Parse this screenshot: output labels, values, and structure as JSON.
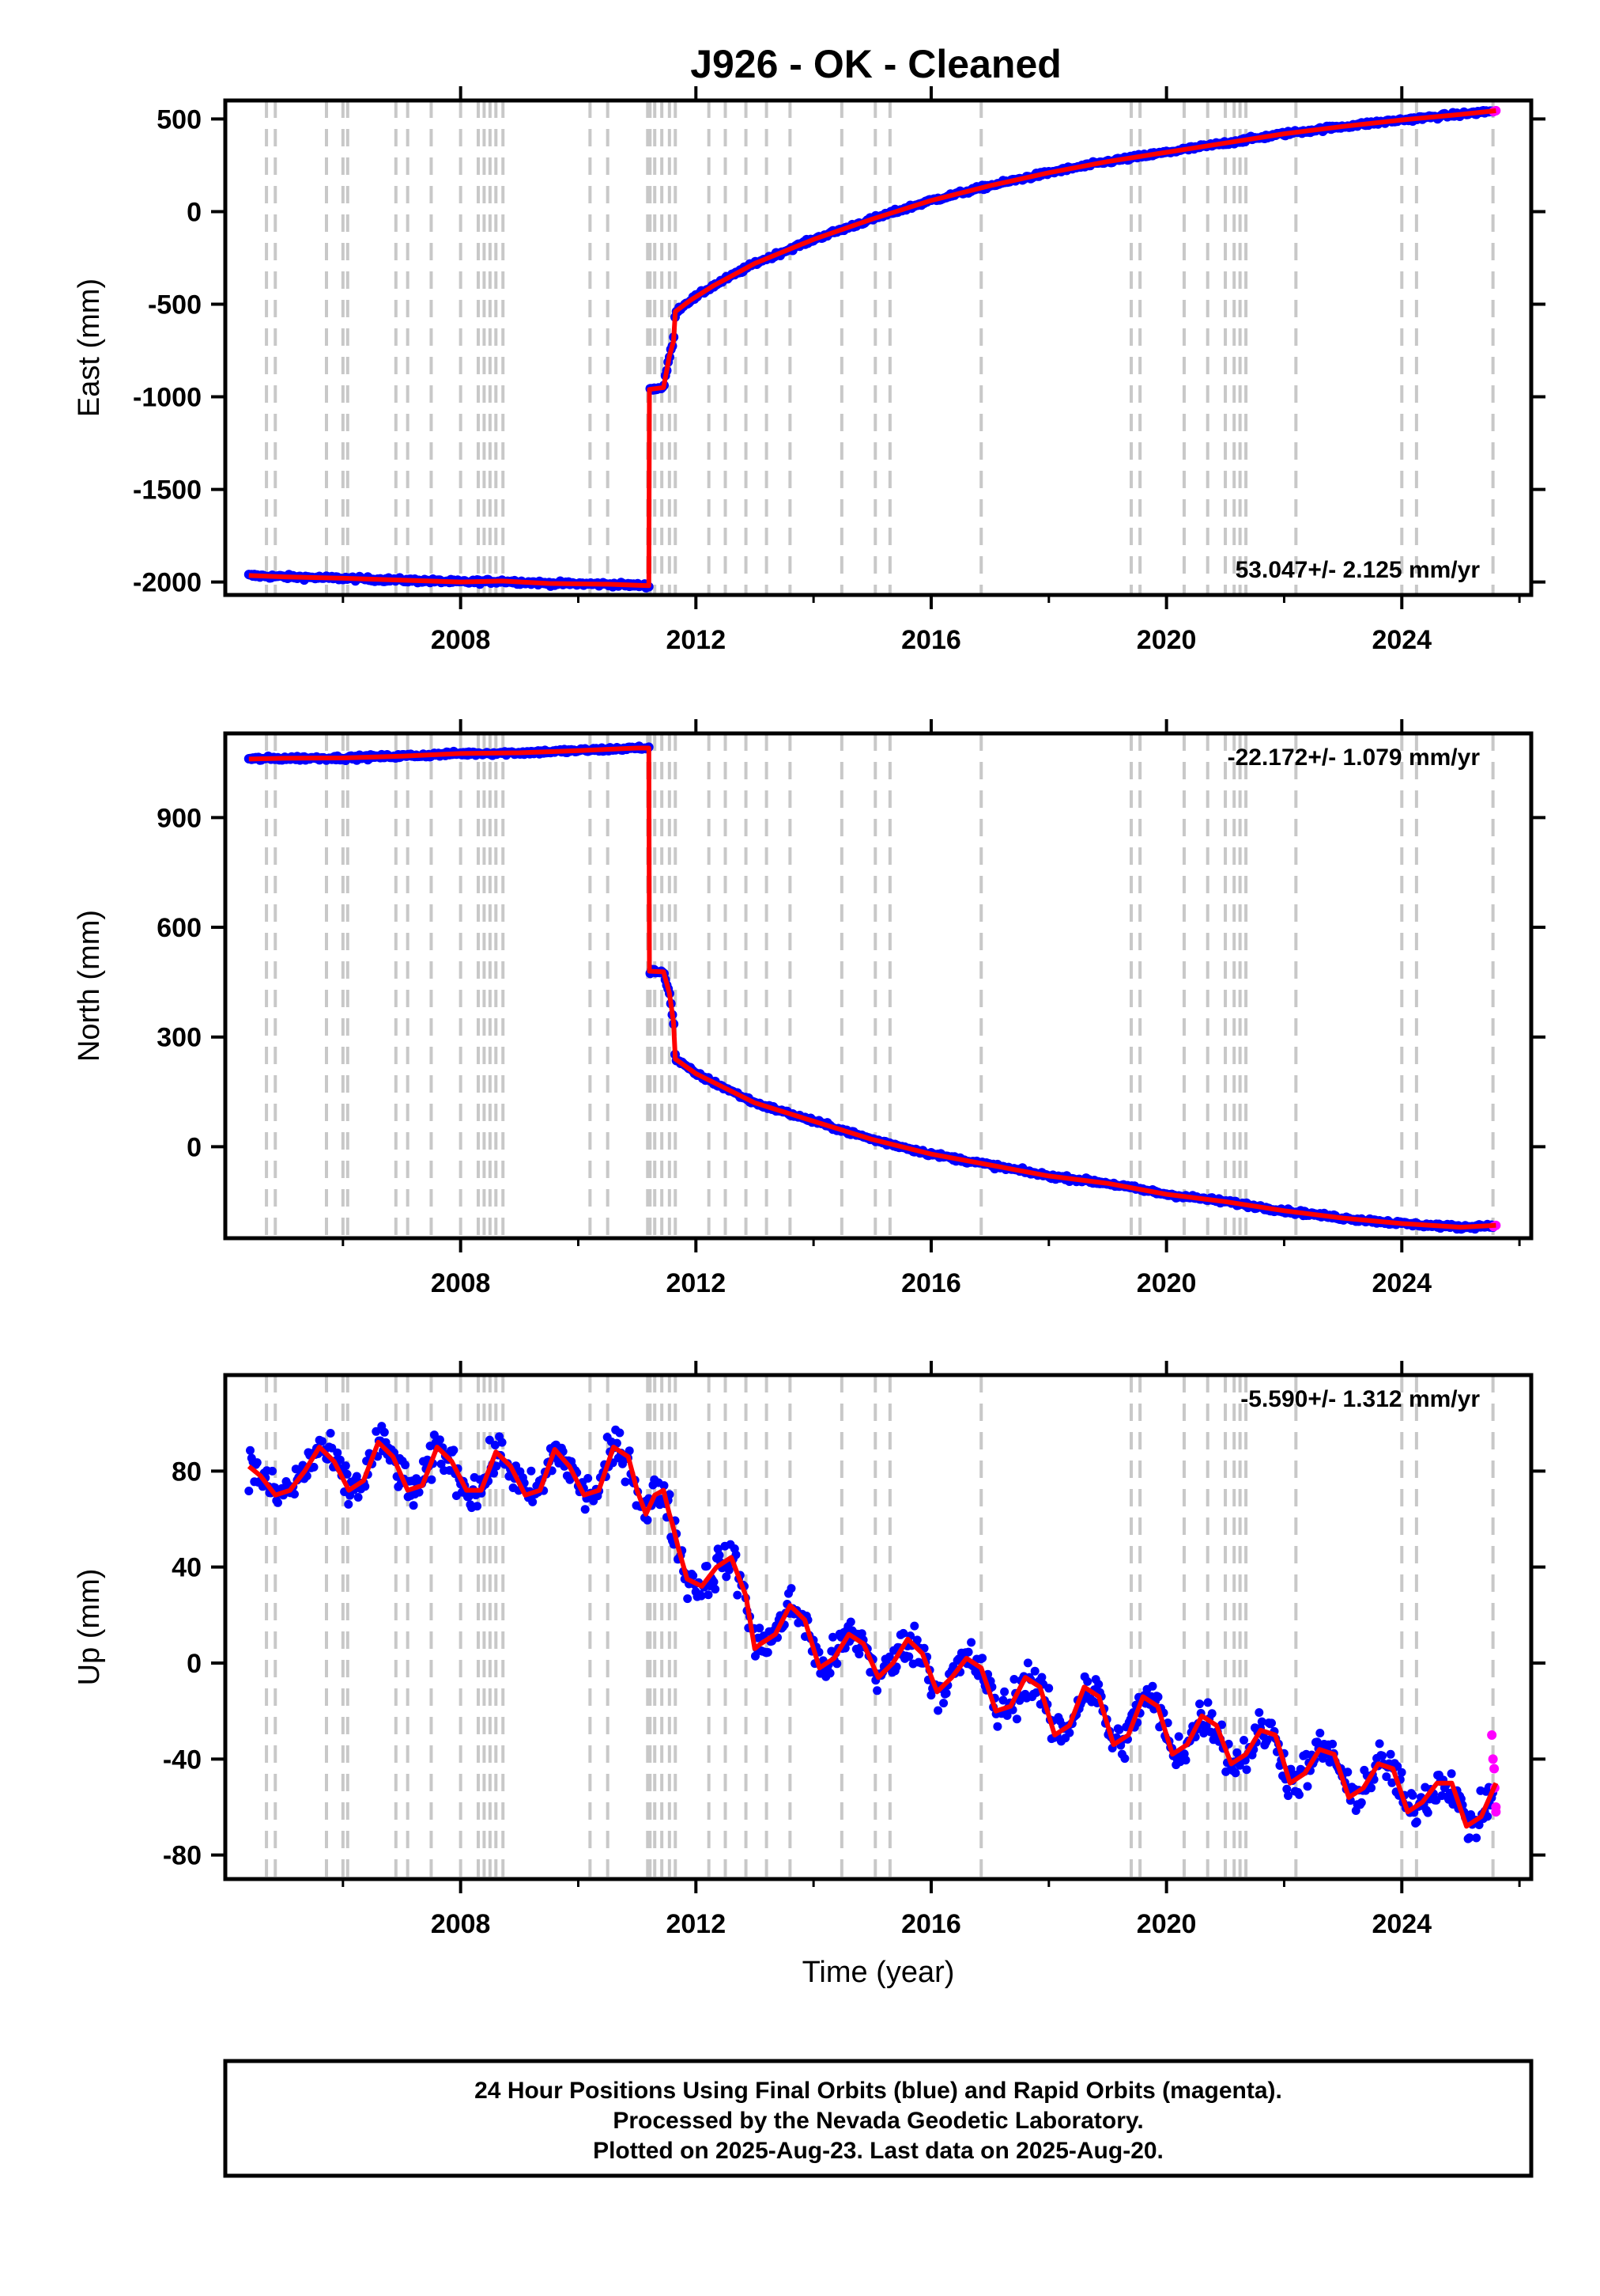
{
  "title": "J926  - OK - Cleaned",
  "colors": {
    "final_points": "#0000ff",
    "rapid_points": "#ff00ff",
    "model_line": "#ff0000",
    "event_lines": "#c8c8c8",
    "frame": "#000000"
  },
  "footer": {
    "line1": "24 Hour Positions Using Final Orbits (blue) and Rapid Orbits (magenta).",
    "line2": "Processed by the Nevada Geodetic Laboratory.",
    "line3": "Plotted on 2025-Aug-23. Last data on 2025-Aug-20."
  },
  "chart_data": [
    {
      "type": "scatter",
      "ylabel": "East (mm)",
      "xlabel": "",
      "rate": "53.047+/- 2.125 mm/yr",
      "rate_position": "bottom-right",
      "xlim": [
        2004.0,
        2026.2
      ],
      "ylim": [
        -2070,
        600
      ],
      "yticks": [
        500,
        0,
        -500,
        -1000,
        -1500,
        -2000
      ],
      "ytick_labels": [
        "500",
        "0",
        "-500",
        "-1000",
        "-1500",
        "-2000"
      ],
      "xticks": [
        2008,
        2012,
        2016,
        2020,
        2024
      ],
      "xtick_labels": [
        "2008",
        "2012",
        "2016",
        "2020",
        "2024"
      ],
      "grid": false,
      "model": {
        "x": [
          2004.4,
          2005.0,
          2006.0,
          2007.0,
          2008.0,
          2008.7,
          2009.5,
          2010.5,
          2011.2,
          2011.21,
          2011.45,
          2011.55,
          2011.62,
          2011.65,
          2011.9,
          2012.3,
          2013.0,
          2014.0,
          2015.0,
          2016.0,
          2017.0,
          2018.0,
          2019.0,
          2020.0,
          2021.0,
          2022.0,
          2023.0,
          2024.0,
          2025.0,
          2025.6
        ],
        "y": [
          -1965,
          -1972,
          -1980,
          -1990,
          -2000,
          -1995,
          -2008,
          -2012,
          -2020,
          -960,
          -950,
          -780,
          -700,
          -540,
          -480,
          -400,
          -280,
          -150,
          -40,
          60,
          140,
          210,
          270,
          320,
          370,
          420,
          460,
          495,
          525,
          545
        ]
      },
      "rapid": {
        "x": [
          2025.56,
          2025.6
        ],
        "y": [
          540,
          545
        ]
      }
    },
    {
      "type": "scatter",
      "ylabel": "North (mm)",
      "xlabel": "",
      "rate": "-22.172+/- 1.079 mm/yr",
      "rate_position": "top-right",
      "xlim": [
        2004.0,
        2026.2
      ],
      "ylim": [
        -250,
        1130
      ],
      "yticks": [
        900,
        600,
        300,
        0
      ],
      "ytick_labels": [
        "900",
        "600",
        "300",
        "0"
      ],
      "xticks": [
        2008,
        2012,
        2016,
        2020,
        2024
      ],
      "xtick_labels": [
        "2008",
        "2012",
        "2016",
        "2020",
        "2024"
      ],
      "grid": false,
      "model": {
        "x": [
          2004.4,
          2005.0,
          2006.0,
          2007.0,
          2008.0,
          2009.0,
          2010.0,
          2011.0,
          2011.2,
          2011.21,
          2011.45,
          2011.55,
          2011.62,
          2011.65,
          2012.0,
          2012.5,
          2013.0,
          2014.0,
          2015.0,
          2016.0,
          2017.0,
          2018.0,
          2019.0,
          2020.0,
          2021.0,
          2022.0,
          2023.0,
          2024.0,
          2025.0,
          2025.6
        ],
        "y": [
          1060,
          1062,
          1063,
          1068,
          1075,
          1077,
          1083,
          1090,
          1090,
          480,
          478,
          420,
          340,
          240,
          200,
          160,
          120,
          70,
          20,
          -20,
          -50,
          -80,
          -100,
          -130,
          -150,
          -175,
          -195,
          -210,
          -220,
          -215
        ]
      },
      "rapid": {
        "x": [
          2025.56,
          2025.6
        ],
        "y": [
          -218,
          -215
        ]
      }
    },
    {
      "type": "scatter",
      "ylabel": "Up (mm)",
      "xlabel": "Time (year)",
      "rate": "-5.590+/- 1.312 mm/yr",
      "rate_position": "top-right",
      "xlim": [
        2004.0,
        2026.2
      ],
      "ylim": [
        -90,
        120
      ],
      "yticks": [
        80,
        40,
        0,
        -40,
        -80
      ],
      "ytick_labels": [
        "80",
        "40",
        "0",
        "-40",
        "-80"
      ],
      "xticks": [
        2008,
        2012,
        2016,
        2020,
        2024
      ],
      "xtick_labels": [
        "2008",
        "2012",
        "2016",
        "2020",
        "2024"
      ],
      "grid": false,
      "model": {
        "x": [
          2004.4,
          2004.6,
          2004.85,
          2005.1,
          2005.35,
          2005.6,
          2005.85,
          2006.1,
          2006.35,
          2006.6,
          2006.85,
          2007.1,
          2007.35,
          2007.6,
          2007.85,
          2008.1,
          2008.35,
          2008.6,
          2008.85,
          2009.1,
          2009.35,
          2009.6,
          2009.85,
          2010.1,
          2010.35,
          2010.6,
          2010.85,
          2011.0,
          2011.15,
          2011.3,
          2011.45,
          2011.55,
          2011.6,
          2011.7,
          2011.85,
          2012.1,
          2012.35,
          2012.6,
          2012.85,
          2013.0,
          2013.1,
          2013.35,
          2013.6,
          2013.85,
          2014.1,
          2014.35,
          2014.6,
          2014.85,
          2015.1,
          2015.35,
          2015.6,
          2015.85,
          2016.1,
          2016.35,
          2016.6,
          2016.85,
          2017.1,
          2017.35,
          2017.6,
          2017.85,
          2018.1,
          2018.35,
          2018.6,
          2018.85,
          2019.1,
          2019.35,
          2019.6,
          2019.85,
          2020.1,
          2020.35,
          2020.6,
          2020.85,
          2021.1,
          2021.35,
          2021.6,
          2021.85,
          2022.1,
          2022.35,
          2022.6,
          2022.85,
          2023.1,
          2023.35,
          2023.6,
          2023.85,
          2024.1,
          2024.35,
          2024.6,
          2024.85,
          2025.1,
          2025.35,
          2025.6
        ],
        "y": [
          82,
          78,
          70,
          72,
          80,
          90,
          84,
          72,
          76,
          92,
          86,
          72,
          74,
          90,
          84,
          72,
          72,
          88,
          82,
          70,
          72,
          89,
          82,
          70,
          72,
          90,
          86,
          72,
          62,
          70,
          72,
          62,
          58,
          48,
          35,
          32,
          40,
          44,
          28,
          6,
          8,
          12,
          24,
          18,
          -2,
          2,
          12,
          8,
          -6,
          0,
          10,
          4,
          -12,
          -6,
          2,
          -2,
          -20,
          -18,
          -6,
          -10,
          -30,
          -26,
          -10,
          -14,
          -34,
          -30,
          -14,
          -18,
          -38,
          -34,
          -22,
          -26,
          -42,
          -38,
          -28,
          -30,
          -50,
          -46,
          -36,
          -38,
          -56,
          -52,
          -42,
          -44,
          -62,
          -58,
          -50,
          -50,
          -68,
          -64,
          -50
        ]
      },
      "rapid": {
        "x": [
          2025.53,
          2025.55,
          2025.57,
          2025.58,
          2025.6,
          2025.6
        ],
        "y": [
          -30,
          -40,
          -44,
          -52,
          -60,
          -62
        ]
      }
    }
  ],
  "event_lines_years": [
    2004.7,
    2004.85,
    2005.72,
    2006.0,
    2006.08,
    2006.9,
    2007.1,
    2007.5,
    2008.0,
    2008.3,
    2008.4,
    2008.5,
    2008.6,
    2008.72,
    2010.2,
    2010.5,
    2011.18,
    2011.22,
    2011.3,
    2011.42,
    2011.55,
    2011.65,
    2012.22,
    2012.5,
    2012.85,
    2013.2,
    2013.6,
    2014.48,
    2015.05,
    2015.3,
    2016.85,
    2019.4,
    2019.55,
    2020.3,
    2020.7,
    2021.0,
    2021.15,
    2021.25,
    2021.35,
    2022.2,
    2024.0,
    2024.25,
    2025.55
  ]
}
